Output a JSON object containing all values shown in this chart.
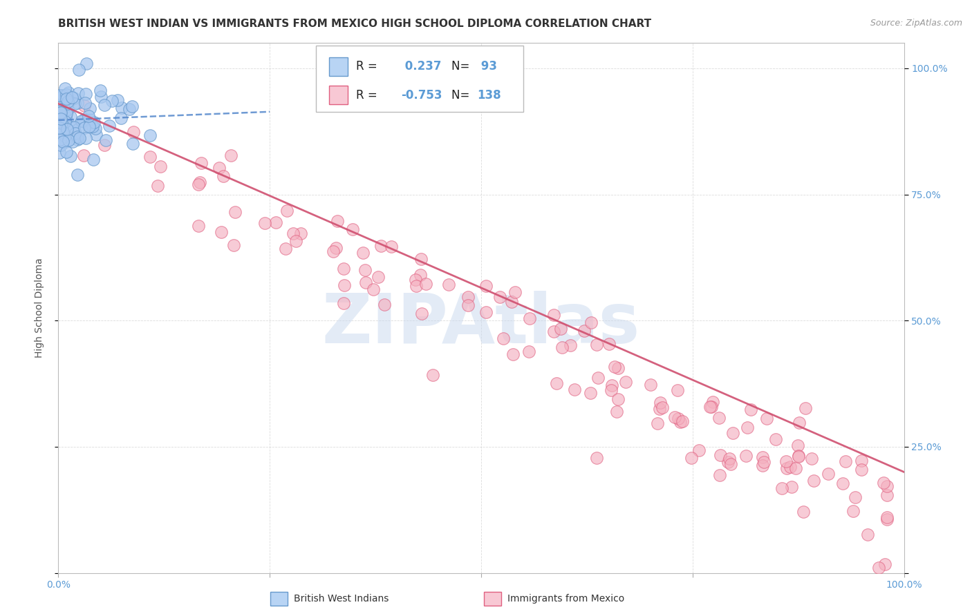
{
  "title": "BRITISH WEST INDIAN VS IMMIGRANTS FROM MEXICO HIGH SCHOOL DIPLOMA CORRELATION CHART",
  "source": "Source: ZipAtlas.com",
  "ylabel": "High School Diploma",
  "blue_color": "#A8C8F0",
  "pink_color": "#F4B0C0",
  "blue_edge_color": "#6699CC",
  "pink_edge_color": "#E06080",
  "blue_line_color": "#5588CC",
  "pink_line_color": "#D05070",
  "legend_blue_fill": "#B8D4F4",
  "legend_pink_fill": "#F8C8D4",
  "background_color": "#FFFFFF",
  "grid_color": "#CCCCCC",
  "title_color": "#333333",
  "watermark_color": "#C8D8EE",
  "watermark_text": "ZIPAtlas",
  "tick_color": "#5B9BD5",
  "r1_text": "R =  0.237",
  "n1_text": "N=  93",
  "r2_text": "R = -0.753",
  "n2_text": "N= 138",
  "blue_seed": 42,
  "pink_seed": 99,
  "title_fontsize": 11,
  "axis_label_fontsize": 10,
  "tick_fontsize": 10,
  "source_fontsize": 9,
  "legend_fontsize": 12
}
